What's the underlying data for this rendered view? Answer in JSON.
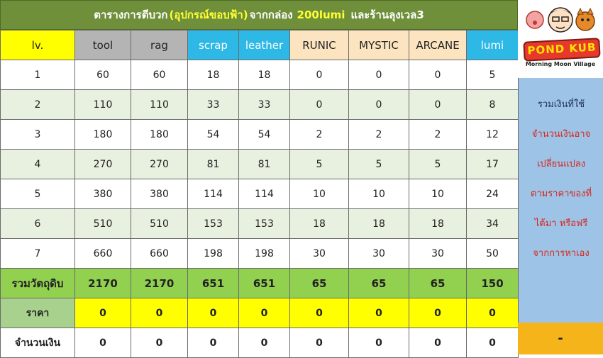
{
  "title": {
    "part1": "ตารางการตีบวก",
    "part2": "(อุปกรณ์ขอบฟ้า)",
    "part3": "จากกล่อง",
    "part4": "200lumi",
    "part5": "และร้านลุงเวล3"
  },
  "headers": [
    "lv.",
    "tool",
    "rag",
    "scrap",
    "leather",
    "RUNIC",
    "MYSTIC",
    "ARCANE",
    "lumi"
  ],
  "rows": [
    [
      "1",
      "60",
      "60",
      "18",
      "18",
      "0",
      "0",
      "0",
      "5"
    ],
    [
      "2",
      "110",
      "110",
      "33",
      "33",
      "0",
      "0",
      "0",
      "8"
    ],
    [
      "3",
      "180",
      "180",
      "54",
      "54",
      "2",
      "2",
      "2",
      "12"
    ],
    [
      "4",
      "270",
      "270",
      "81",
      "81",
      "5",
      "5",
      "5",
      "17"
    ],
    [
      "5",
      "380",
      "380",
      "114",
      "114",
      "10",
      "10",
      "10",
      "24"
    ],
    [
      "6",
      "510",
      "510",
      "153",
      "153",
      "18",
      "18",
      "18",
      "34"
    ],
    [
      "7",
      "660",
      "660",
      "198",
      "198",
      "30",
      "30",
      "30",
      "50"
    ]
  ],
  "total_row": [
    "รวมวัตถุดิบ",
    "2170",
    "2170",
    "651",
    "651",
    "65",
    "65",
    "65",
    "150"
  ],
  "price_row": [
    "ราคา",
    "0",
    "0",
    "0",
    "0",
    "0",
    "0",
    "0",
    "0"
  ],
  "amount_row": [
    "จำนวนเงิน",
    "0",
    "0",
    "0",
    "0",
    "0",
    "0",
    "0",
    "0"
  ],
  "logo": {
    "name": "POND KUB",
    "subtitle": "Morning Moon Village"
  },
  "side_note": {
    "line1": "รวมเงินที่ใช้",
    "line2": "จำนวนเงินอาจ",
    "line3": "เปลี่ยนแปลง",
    "line4": "ตามราคาของที่",
    "line5": "ได้มา หรือฟรี",
    "line6": "จากการหาเอง"
  },
  "side_total": "-",
  "colors": {
    "title_bg": "#6f8f3b",
    "title_highlight": "#ffff33",
    "header_lv": "#ffff00",
    "header_gray": "#b4b4b4",
    "header_blue": "#2eb8e6",
    "header_peach": "#fde4c0",
    "total_row": "#92d050",
    "price_row": "#ffff00",
    "side_note_bg": "#9dc3e6",
    "side_total_bg": "#f4b41a"
  }
}
